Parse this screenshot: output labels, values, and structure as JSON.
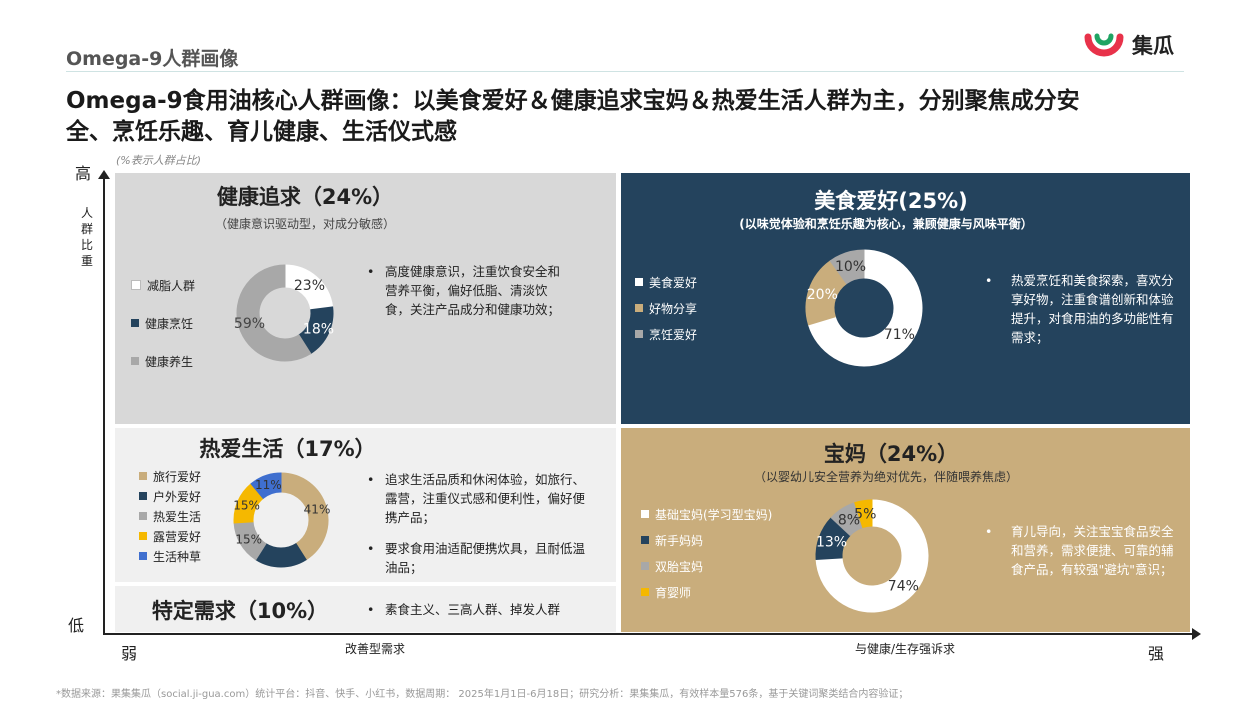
{
  "header": {
    "section_title": "Omega-9人群画像",
    "brand": "集瓜",
    "headline_line1": "Omega-9食用油核心人群画像：以美食爱好＆健康追求宝妈＆热爱生活人群为主，分别聚焦成分安",
    "headline_line2": "全、烹饪乐趣、育儿健康、生活仪式感",
    "note": "(%表示人群占比)"
  },
  "axes": {
    "y_high": "高",
    "y_low": "低",
    "y_label": "人群比重",
    "x_weak": "弱",
    "x_strong": "强",
    "x_mid_left": "改善型需求",
    "x_mid_right": "与健康/生存强诉求"
  },
  "quadrants": {
    "health": {
      "title": "健康追求（24%）",
      "subtitle": "（健康意识驱动型，对成分敏感）",
      "bullet": "•",
      "desc": "高度健康意识，注重饮食安全和营养平衡，偏好低脂、清淡饮食，关注产品成分和健康功效；"
    },
    "food": {
      "title": "美食爱好(25%)",
      "subtitle": "(以味觉体验和烹饪乐趣为核心，兼顾健康与风味平衡）",
      "bullet": "•",
      "desc": "热爱烹饪和美食探索，喜欢分享好物，注重食谱创新和体验提升，对食用油的多功能性有需求；"
    },
    "life": {
      "title": "热爱生活（17%）",
      "bullet": "•",
      "desc1": "追求生活品质和休闲体验，如旅行、露营，注重仪式感和便利性，偏好便携产品；",
      "desc2": "要求食用油适配便携炊具，且耐低温油品；"
    },
    "special": {
      "title": "特定需求（10%）",
      "bullet": "•",
      "desc": "素食主义、三高人群、掉发人群"
    },
    "mom": {
      "title": "宝妈（24%）",
      "subtitle": "（以婴幼儿安全营养为绝对优先，伴随喂养焦虑）",
      "bullet": "•",
      "desc": "育儿导向，关注宝宝食品安全和营养，需求便捷、可靠的辅食产品，有较强\"避坑\"意识；"
    }
  },
  "chart_data": [
    {
      "type": "pie",
      "name": "健康追求",
      "categories": [
        "减脂人群",
        "健康烹饪",
        "健康养生"
      ],
      "values": [
        23,
        18,
        59
      ],
      "labels": [
        "23%",
        "18%",
        "59%"
      ],
      "colors": [
        "#ffffff",
        "#24435d",
        "#a8a8a8"
      ]
    },
    {
      "type": "pie",
      "name": "美食爱好",
      "categories": [
        "美食爱好",
        "好物分享",
        "烹饪爱好"
      ],
      "values": [
        71,
        20,
        10
      ],
      "labels": [
        "71%",
        "20%",
        "10%"
      ],
      "colors": [
        "#ffffff",
        "#c9ad7c",
        "#a8a8a8"
      ]
    },
    {
      "type": "pie",
      "name": "热爱生活",
      "categories": [
        "旅行爱好",
        "户外爱好",
        "热爱生活",
        "露营爱好",
        "生活种草"
      ],
      "values": [
        41,
        18,
        15,
        15,
        11
      ],
      "labels": [
        "41%",
        "",
        "15%",
        "15%",
        "11%"
      ],
      "colors": [
        "#c9ad7c",
        "#24435d",
        "#a8a8a8",
        "#f5b800",
        "#3f6fcf"
      ]
    },
    {
      "type": "pie",
      "name": "宝妈",
      "categories": [
        "基础宝妈(学习型宝妈)",
        "新手妈妈",
        "双胎宝妈",
        "育婴师"
      ],
      "values": [
        74,
        13,
        8,
        5
      ],
      "labels": [
        "74%",
        "13%",
        "8%",
        "5%"
      ],
      "colors": [
        "#ffffff",
        "#24435d",
        "#a8a8a8",
        "#f5b800"
      ]
    }
  ],
  "footer": "*数据来源：果集集瓜（social.ji-gua.com）统计平台：抖音、快手、小红书，数据周期： 2025年1月1日-6月18日；研究分析：果集集瓜，有效样本量576条，基于关键词聚类结合内容验证；"
}
